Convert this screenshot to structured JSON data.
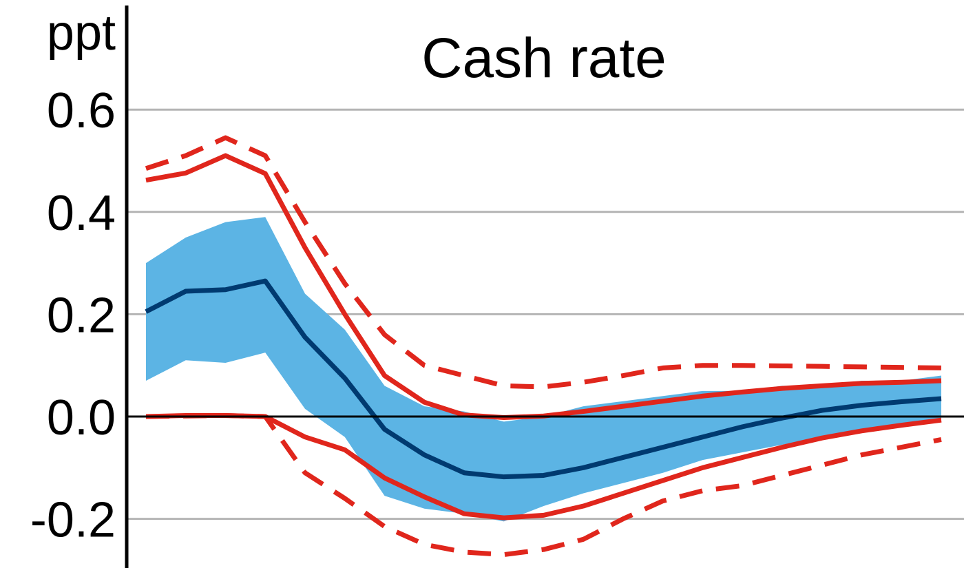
{
  "chart_data": {
    "type": "line",
    "title": "Cash rate",
    "ylabel": "ppt",
    "xlabel": "",
    "ylim": [
      -0.285,
      0.8
    ],
    "yticks": [
      -0.2,
      0.0,
      0.2,
      0.4,
      0.6
    ],
    "ytick_labels": [
      "-0.2",
      "0.0",
      "0.2",
      "0.4",
      "0.6"
    ],
    "grid": true,
    "x": [
      0,
      1,
      2,
      3,
      4,
      5,
      6,
      7,
      8,
      9,
      10,
      11,
      12,
      13,
      14,
      15,
      16,
      17,
      18,
      19,
      20
    ],
    "band": {
      "upper": [
        0.3,
        0.35,
        0.38,
        0.39,
        0.24,
        0.17,
        0.06,
        0.02,
        0.01,
        -0.01,
        0.0,
        0.02,
        0.03,
        0.04,
        0.05,
        0.05,
        0.06,
        0.06,
        0.07,
        0.07,
        0.08
      ],
      "lower": [
        0.07,
        0.11,
        0.105,
        0.125,
        0.015,
        -0.04,
        -0.155,
        -0.18,
        -0.19,
        -0.205,
        -0.175,
        -0.15,
        -0.13,
        -0.11,
        -0.085,
        -0.07,
        -0.055,
        -0.04,
        -0.025,
        -0.015,
        -0.005
      ]
    },
    "series": [
      {
        "values": [
          0.205,
          0.245,
          0.248,
          0.265,
          0.155,
          0.075,
          -0.025,
          -0.075,
          -0.11,
          -0.118,
          -0.115,
          -0.1,
          -0.08,
          -0.06,
          -0.04,
          -0.02,
          -0.003,
          0.012,
          0.022,
          0.029,
          0.035
        ]
      },
      {
        "values": [
          0.462,
          0.476,
          0.51,
          0.475,
          0.33,
          0.2,
          0.08,
          0.028,
          0.003,
          -0.002,
          0.001,
          0.01,
          0.02,
          0.03,
          0.04,
          0.048,
          0.055,
          0.06,
          0.065,
          0.067,
          0.07
        ]
      },
      {
        "values": [
          0.0,
          0.002,
          0.002,
          0.0,
          -0.04,
          -0.065,
          -0.12,
          -0.157,
          -0.19,
          -0.198,
          -0.193,
          -0.175,
          -0.15,
          -0.125,
          -0.1,
          -0.08,
          -0.06,
          -0.042,
          -0.028,
          -0.017,
          -0.007
        ]
      },
      {
        "values": [
          0.485,
          0.51,
          0.545,
          0.51,
          0.38,
          0.26,
          0.16,
          0.1,
          0.08,
          0.06,
          0.058,
          0.067,
          0.08,
          0.095,
          0.1,
          0.1,
          0.099,
          0.098,
          0.097,
          0.096,
          0.095
        ]
      },
      {
        "values": [
          0.0,
          0.001,
          0.002,
          0.0,
          -0.11,
          -0.16,
          -0.215,
          -0.25,
          -0.265,
          -0.27,
          -0.26,
          -0.24,
          -0.2,
          -0.165,
          -0.145,
          -0.135,
          -0.115,
          -0.095,
          -0.075,
          -0.06,
          -0.045
        ]
      }
    ],
    "colors": {
      "band": "#5cb4e4",
      "central": "#003a70",
      "interval": "#e0261c",
      "grid": "#b4b4b4",
      "axis": "#000000"
    }
  }
}
